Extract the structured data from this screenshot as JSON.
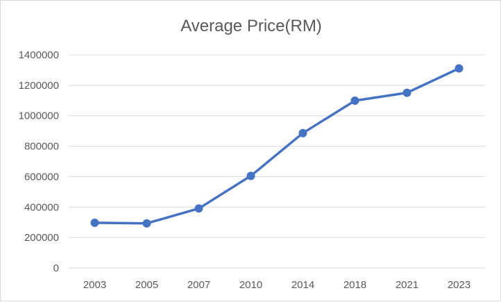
{
  "chart_data": {
    "type": "line",
    "title": "Average Price(RM)",
    "xlabel": "",
    "ylabel": "",
    "categories": [
      "2003",
      "2005",
      "2007",
      "2010",
      "2014",
      "2018",
      "2021",
      "2023"
    ],
    "series": [
      {
        "name": "Average Price(RM)",
        "values": [
          297000,
          293000,
          391000,
          605000,
          886000,
          1099000,
          1151000,
          1311000
        ]
      }
    ],
    "ylim": [
      0,
      1400000
    ],
    "yticks": [
      "0",
      "200000",
      "400000",
      "600000",
      "800000",
      "1000000",
      "1200000",
      "1400000"
    ],
    "grid": true,
    "legend": "none",
    "color": "#4472c4"
  }
}
